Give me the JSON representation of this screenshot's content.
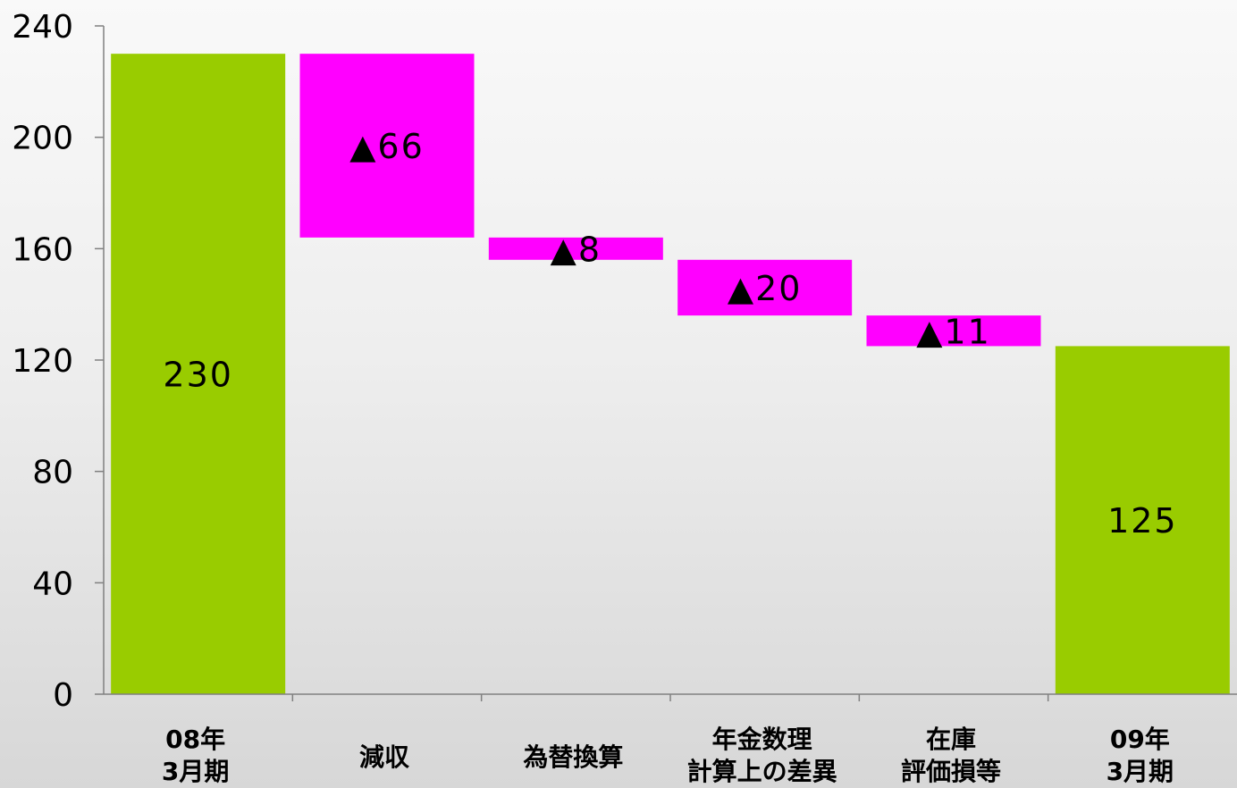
{
  "chart_data": {
    "type": "bar",
    "subtype": "waterfall",
    "title": "",
    "xlabel": "",
    "ylabel": "",
    "ylim": [
      0,
      240
    ],
    "yticks": [
      0,
      40,
      80,
      120,
      160,
      200,
      240
    ],
    "grid": false,
    "categories": [
      [
        "08年",
        "3月期"
      ],
      [
        "減収"
      ],
      [
        "為替換算"
      ],
      [
        "年金数理",
        "計算上の差異"
      ],
      [
        "在庫",
        "評価損等"
      ],
      [
        "09年",
        "3月期"
      ]
    ],
    "bars": [
      {
        "kind": "total",
        "start": 0,
        "end": 230,
        "label": "230"
      },
      {
        "kind": "decrease",
        "start": 230,
        "end": 164,
        "label": "▲66"
      },
      {
        "kind": "decrease",
        "start": 164,
        "end": 156,
        "label": "▲8"
      },
      {
        "kind": "decrease",
        "start": 156,
        "end": 136,
        "label": "▲20"
      },
      {
        "kind": "decrease",
        "start": 136,
        "end": 125,
        "label": "▲11"
      },
      {
        "kind": "total",
        "start": 0,
        "end": 125,
        "label": "125"
      }
    ],
    "colors": {
      "total": "#99cc00",
      "decrease": "#ff00ff",
      "axis": "#808080",
      "text": "#000000"
    }
  }
}
